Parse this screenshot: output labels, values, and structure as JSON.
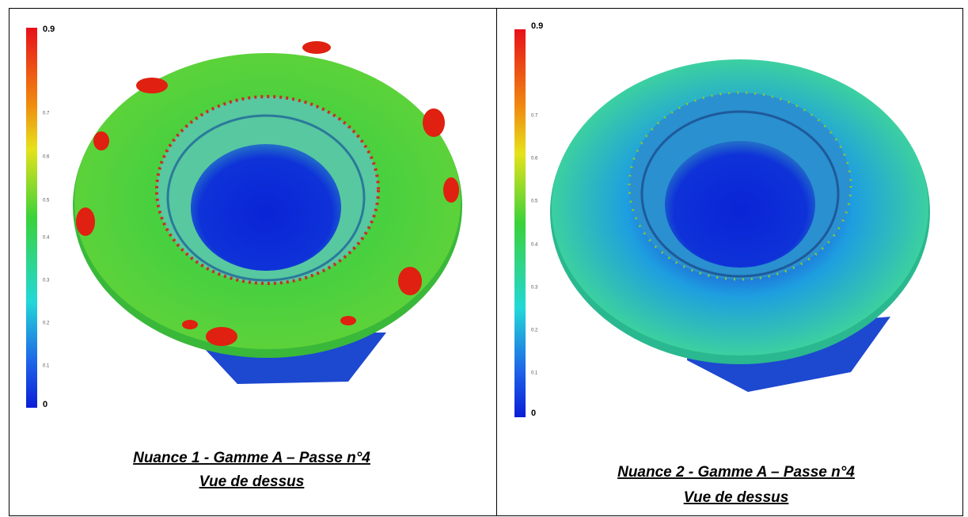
{
  "panels": [
    {
      "scale": {
        "max": "0.9",
        "min": "0",
        "ticks": [
          "0.7",
          "0.6",
          "0.5",
          "0.4",
          "0.3",
          "0.2",
          "0.1"
        ]
      },
      "caption": {
        "line1": "Nuance 1 -  Gamme A  – Passe n°4",
        "line2": "Vue de dessus"
      }
    },
    {
      "scale": {
        "max": "0.9",
        "min": "0",
        "ticks": [
          "0.7",
          "0.6",
          "0.5",
          "0.4",
          "0.3",
          "0.2",
          "0.1"
        ]
      },
      "caption": {
        "line1": "Nuance 2 -  Gamme A  – Passe n°4",
        "line2": "Vue de dessus"
      }
    }
  ]
}
